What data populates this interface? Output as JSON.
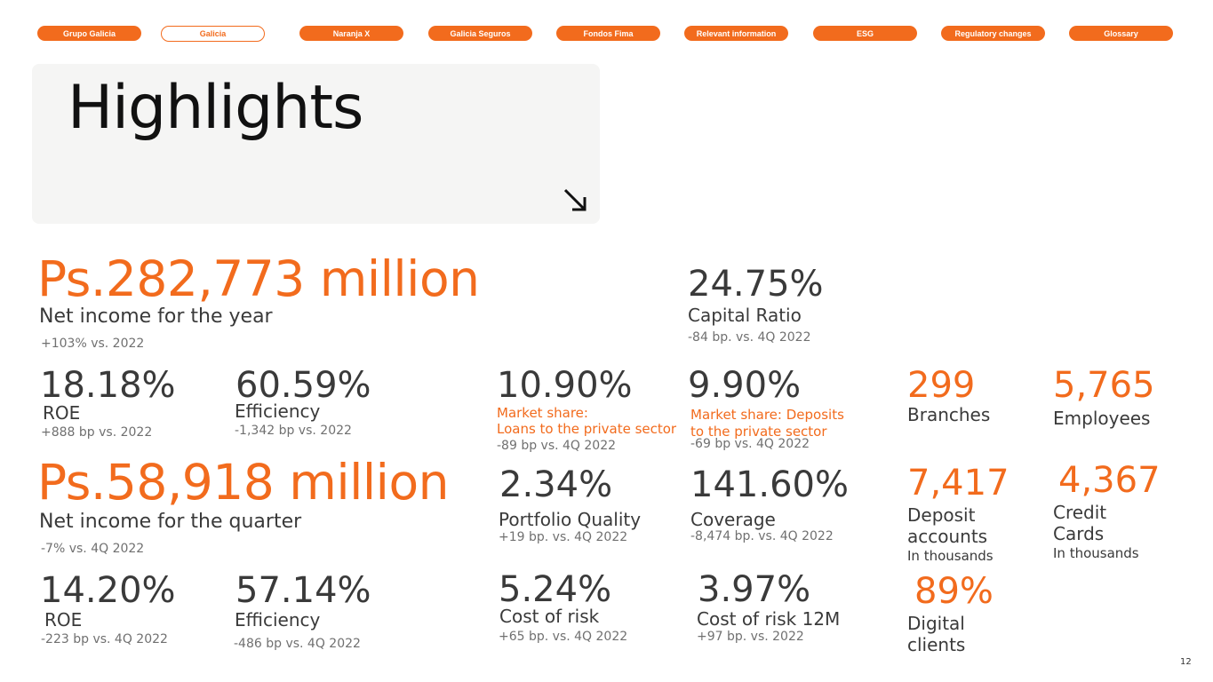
{
  "nav": [
    {
      "label": "Grupo Galicia",
      "active": false
    },
    {
      "label": "Galicia",
      "active": true
    },
    {
      "label": "Naranja X",
      "active": false
    },
    {
      "label": "Galicia Seguros",
      "active": false
    },
    {
      "label": "Fondos Fima",
      "active": false
    },
    {
      "label": "Relevant information",
      "active": false
    },
    {
      "label": "ESG",
      "active": false
    },
    {
      "label": "Regulatory changes",
      "active": false
    },
    {
      "label": "Glossary",
      "active": false
    }
  ],
  "hero": {
    "title": "Highlights",
    "arrow_icon": "arrow-down-right-icon"
  },
  "annual": {
    "net_income": "Ps.282,773 million",
    "net_income_label": "Net income for the year",
    "net_income_change": "+103% vs. 2022",
    "roe": "18.18%",
    "roe_label": "ROE",
    "roe_change": "+888 bp vs. 2022",
    "efficiency": "60.59%",
    "efficiency_label": "Efficiency",
    "efficiency_change": "-1,342 bp vs. 2022"
  },
  "quarter": {
    "net_income": "Ps.58,918 million",
    "net_income_label": "Net income for the quarter",
    "net_income_change": "-7% vs. 4Q 2022",
    "roe": "14.20%",
    "roe_label": "ROE",
    "roe_change": "-223 bp vs. 4Q 2022",
    "efficiency": "57.14%",
    "efficiency_label": "Efficiency",
    "efficiency_change": "-486 bp vs. 4Q 2022"
  },
  "capital": {
    "value": "24.75%",
    "label": "Capital Ratio",
    "change": "-84 bp. vs. 4Q 2022"
  },
  "loans_share": {
    "value": "10.90%",
    "label_line1": "Market share:",
    "label_line2": "Loans to the private sector",
    "change": "-89 bp vs. 4Q 2022"
  },
  "deposits_share": {
    "value": "9.90%",
    "label_line1": "Market share: Deposits",
    "label_line2": "to the private sector",
    "change": "-69 bp vs. 4Q 2022"
  },
  "portfolio": {
    "value": "2.34%",
    "label": "Portfolio Quality",
    "change": "+19 bp. vs. 4Q 2022"
  },
  "coverage": {
    "value": "141.60%",
    "label": "Coverage",
    "change": "-8,474 bp. vs. 4Q 2022"
  },
  "cost_risk": {
    "value": "5.24%",
    "label": "Cost of risk",
    "change": "+65 bp. vs. 4Q 2022"
  },
  "cost_risk_12m": {
    "value": "3.97%",
    "label": "Cost of risk 12M",
    "change": "+97 bp. vs. 2022"
  },
  "branches": {
    "value": "299",
    "label": "Branches"
  },
  "employees": {
    "value": "5,765",
    "label": "Employees"
  },
  "deposit_accounts": {
    "value": "7,417",
    "label_line1": "Deposit",
    "label_line2": "accounts",
    "unit": "In thousands"
  },
  "credit_cards": {
    "value": "4,367",
    "label_line1": "Credit",
    "label_line2": "Cards",
    "unit": "In thousands"
  },
  "digital": {
    "value": "89%",
    "label_line1": "Digital",
    "label_line2": "clients"
  },
  "page_number": "12",
  "colors": {
    "accent": "#f26b1d",
    "text": "#3a3a3a",
    "muted": "#707070",
    "panel": "#f5f5f4"
  }
}
